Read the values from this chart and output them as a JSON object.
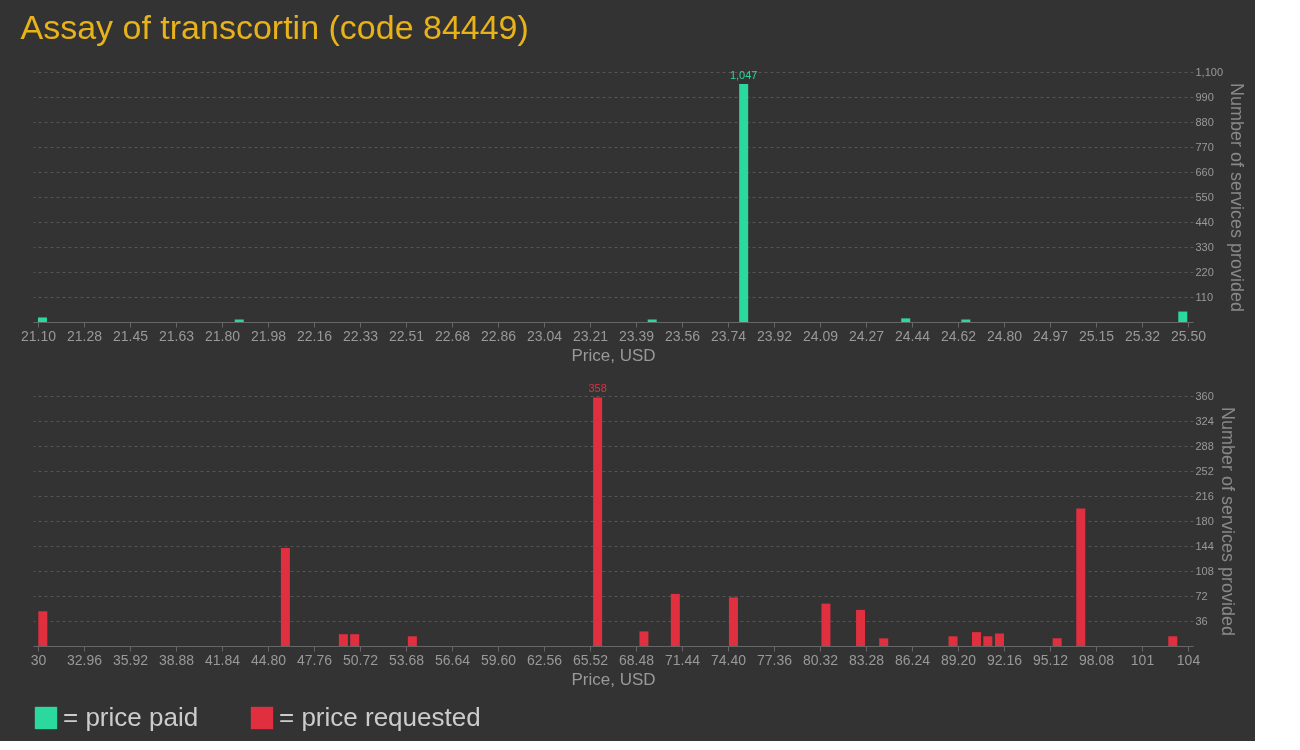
{
  "chart_data": [
    {
      "type": "bar",
      "title": "Assay of transcortin (code 84449)",
      "xlabel": "Price, USD",
      "ylabel": "Number of services provided",
      "series": [
        {
          "name": "= price paid",
          "color": "#2bd89e",
          "x": [
            21.117,
            21.87,
            23.45,
            23.8,
            24.42,
            24.65,
            25.48
          ],
          "values": [
            20,
            11,
            11,
            1047,
            16,
            11,
            46
          ],
          "value_labels": [
            null,
            null,
            null,
            "1,047",
            null,
            null,
            null
          ]
        }
      ],
      "xlim": [
        21.1,
        25.5
      ],
      "xticks": [
        {
          "value": 21.1,
          "label": "21.10"
        },
        {
          "value": 21.276,
          "label": "21.28"
        },
        {
          "value": 21.452,
          "label": "21.45"
        },
        {
          "value": 21.628,
          "label": "21.63"
        },
        {
          "value": 21.804,
          "label": "21.80"
        },
        21.98,
        {
          "value": 22.156,
          "label": "22.16"
        },
        {
          "value": 22.332,
          "label": "22.33"
        },
        {
          "value": 22.508,
          "label": "22.51"
        },
        {
          "value": 22.684,
          "label": "22.68"
        },
        22.86,
        {
          "value": 23.036,
          "label": "23.04"
        },
        {
          "value": 23.212,
          "label": "23.21"
        },
        {
          "value": 23.388,
          "label": "23.39"
        },
        {
          "value": 23.564,
          "label": "23.56"
        },
        23.74,
        {
          "value": 23.916,
          "label": "23.92"
        },
        {
          "value": 24.092,
          "label": "24.09"
        },
        {
          "value": 24.268,
          "label": "24.27"
        },
        {
          "value": 24.444,
          "label": "24.44"
        },
        24.62,
        {
          "value": 24.796,
          "label": "24.80"
        },
        {
          "value": 24.972,
          "label": "24.97"
        },
        {
          "value": 25.148,
          "label": "25.15"
        },
        {
          "value": 25.324,
          "label": "25.32"
        },
        {
          "value": 25.5,
          "label": "25.50"
        }
      ],
      "ylim": [
        0,
        1100
      ],
      "yticks": [
        110,
        220,
        330,
        440,
        550,
        660,
        770,
        880,
        990,
        {
          "value": 1100,
          "label": "1,100"
        }
      ],
      "grid": "y",
      "legend": "bottom left"
    },
    {
      "type": "bar",
      "xlabel": "Price, USD",
      "ylabel": "Number of services provided",
      "series": [
        {
          "name": "= price requested",
          "color": "#e0303f",
          "x": [
            30.31,
            45.92,
            49.65,
            50.38,
            54.09,
            66.01,
            68.99,
            71.01,
            74.75,
            80.7,
            82.93,
            84.42,
            88.88,
            90.39,
            91.12,
            91.87,
            95.58,
            97.1,
            103.02
          ],
          "values": [
            50,
            141,
            17,
            17,
            14,
            358,
            21,
            75,
            70,
            61,
            52,
            11,
            14,
            20,
            14,
            18,
            11,
            198,
            14
          ],
          "value_labels": [
            null,
            null,
            null,
            null,
            null,
            "358",
            null,
            null,
            null,
            null,
            null,
            null,
            null,
            null,
            null,
            null,
            null,
            null,
            null
          ]
        }
      ],
      "xlim": [
        30,
        104
      ],
      "xticks": [
        30,
        32.96,
        35.92,
        38.88,
        41.84,
        {
          "value": 44.8,
          "label": "44.80"
        },
        47.76,
        50.72,
        53.68,
        56.64,
        {
          "value": 59.6,
          "label": "59.60"
        },
        62.56,
        65.52,
        68.48,
        71.44,
        {
          "value": 74.4,
          "label": "74.40"
        },
        77.36,
        80.32,
        83.28,
        86.24,
        {
          "value": 89.2,
          "label": "89.20"
        },
        92.16,
        95.12,
        98.08,
        {
          "value": 101.04,
          "label": "101"
        },
        104
      ],
      "ylim": [
        0,
        360
      ],
      "yticks": [
        36,
        72,
        108,
        144,
        180,
        216,
        252,
        288,
        324,
        360
      ],
      "grid": "y",
      "legend": "bottom left"
    }
  ]
}
